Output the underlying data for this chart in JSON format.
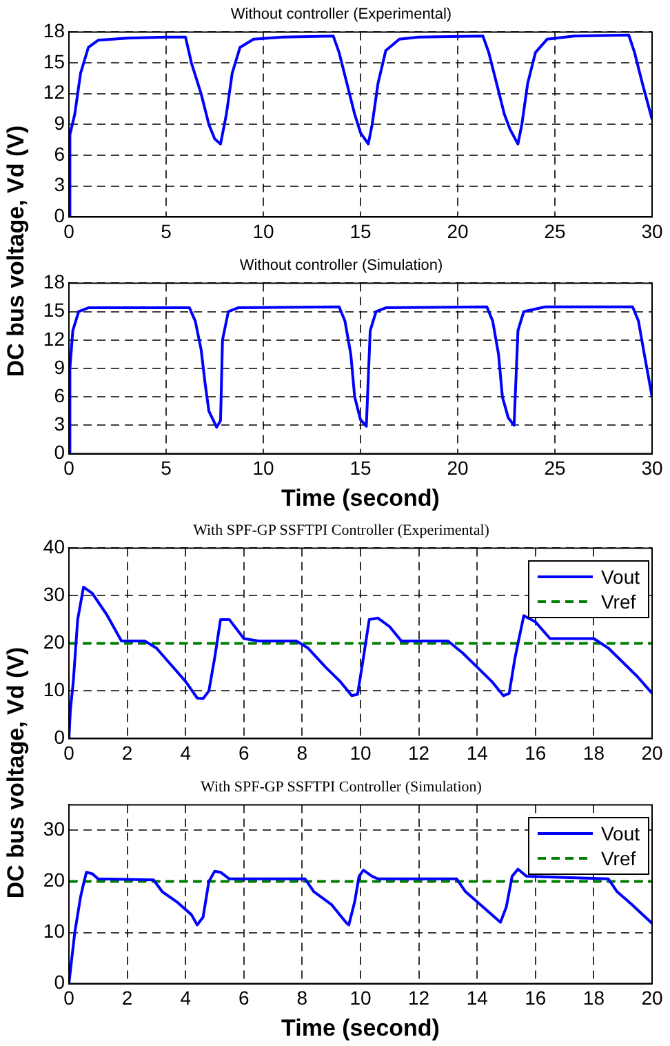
{
  "chart_data": [
    {
      "type": "line",
      "title": "Without controller (Experimental)",
      "ylabel": "DC bus voltage, Vd (V)",
      "xlim": [
        0,
        30
      ],
      "xticks": [
        0,
        5,
        10,
        15,
        20,
        25,
        30
      ],
      "ylim": [
        0,
        18
      ],
      "yticks": [
        0,
        3,
        6,
        9,
        12,
        15,
        18
      ],
      "grid": true,
      "legend": false,
      "series": [
        {
          "color": "#0000ff",
          "x": [
            0,
            0.05,
            0.3,
            0.6,
            1,
            1.5,
            3,
            5,
            6,
            6.3,
            6.8,
            7.2,
            7.5,
            7.8,
            8.1,
            8.4,
            8.8,
            9.5,
            11,
            13.6,
            13.9,
            14.3,
            14.7,
            15,
            15.4,
            15.6,
            15.9,
            16.3,
            17,
            18,
            21.3,
            21.6,
            22,
            22.4,
            22.7,
            23.1,
            23.3,
            23.6,
            24,
            24.6,
            26,
            28.8,
            29.1,
            29.5,
            30
          ],
          "values": [
            0,
            8,
            10,
            14,
            16.5,
            17.2,
            17.4,
            17.5,
            17.5,
            15,
            12,
            9,
            7.6,
            7.1,
            10,
            14,
            16.5,
            17.3,
            17.5,
            17.6,
            16,
            13,
            10,
            8.2,
            7.1,
            9,
            13,
            16.2,
            17.3,
            17.5,
            17.6,
            16,
            13,
            10,
            8.5,
            7.1,
            9,
            13,
            16,
            17.3,
            17.6,
            17.7,
            16,
            13,
            9.5
          ]
        }
      ]
    },
    {
      "type": "line",
      "title": "Without controller (Simulation)",
      "xlabel": "Time (second)",
      "xlim": [
        0,
        30
      ],
      "xticks": [
        0,
        5,
        10,
        15,
        20,
        25,
        30
      ],
      "ylim": [
        0,
        18
      ],
      "yticks": [
        0,
        3,
        6,
        9,
        12,
        15,
        18
      ],
      "grid": true,
      "legend": false,
      "series": [
        {
          "color": "#0000ff",
          "x": [
            0,
            0.05,
            0.2,
            0.5,
            1,
            6.2,
            6.5,
            6.8,
            7,
            7.2,
            7.6,
            7.8,
            7.9,
            8.2,
            8.7,
            13.9,
            14.2,
            14.5,
            14.7,
            15,
            15.3,
            15.4,
            15.5,
            15.8,
            16.3,
            21.5,
            21.8,
            22.1,
            22.3,
            22.6,
            22.9,
            23,
            23.1,
            23.4,
            24.5,
            29,
            29.3,
            29.6,
            30
          ],
          "values": [
            0,
            9,
            13,
            15,
            15.4,
            15.4,
            14,
            11,
            7.5,
            4.5,
            2.8,
            3.5,
            12,
            15,
            15.4,
            15.5,
            14,
            10.5,
            6,
            3.6,
            2.9,
            8,
            13,
            15,
            15.4,
            15.5,
            14,
            10.5,
            6,
            3.8,
            3,
            8,
            13,
            15,
            15.5,
            15.5,
            14,
            10.5,
            6
          ]
        }
      ]
    },
    {
      "type": "line",
      "title": "With SPF-GP SSFTPI Controller (Experimental)",
      "ylabel": "DC bus voltage, Vd (V)",
      "xlim": [
        0,
        20
      ],
      "xticks": [
        0,
        2,
        4,
        6,
        8,
        10,
        12,
        14,
        16,
        18,
        20
      ],
      "ylim": [
        0,
        40
      ],
      "yticks": [
        0,
        10,
        20,
        30,
        40
      ],
      "grid": true,
      "legend": "top right",
      "series": [
        {
          "name": "Vout",
          "color": "#0000ff",
          "line_style": "solid",
          "x": [
            0,
            0.05,
            0.15,
            0.3,
            0.5,
            0.8,
            1.3,
            1.8,
            2.6,
            3,
            3.5,
            4,
            4.4,
            4.6,
            4.8,
            5,
            5.2,
            5.5,
            6,
            6.5,
            7.8,
            8.2,
            8.8,
            9.3,
            9.7,
            9.9,
            10.1,
            10.3,
            10.6,
            11,
            11.4,
            13,
            13.5,
            14,
            14.5,
            14.9,
            15.1,
            15.3,
            15.6,
            16,
            16.5,
            18,
            18.5,
            19,
            19.5,
            20
          ],
          "values": [
            0,
            6,
            12,
            25,
            31.8,
            30.5,
            26,
            20.5,
            20.5,
            19,
            15.5,
            12,
            8.5,
            8.4,
            10,
            17,
            25,
            25,
            21,
            20.5,
            20.5,
            19,
            15,
            12,
            9,
            9.3,
            17,
            25,
            25.3,
            23.5,
            20.5,
            20.5,
            18,
            15,
            12,
            9,
            9.5,
            17,
            25.8,
            24.5,
            21,
            21,
            19,
            16,
            13,
            9.5
          ]
        },
        {
          "name": "Vref",
          "color": "#008000",
          "line_style": "dashed",
          "x": [
            0,
            20
          ],
          "values": [
            20,
            20
          ]
        }
      ]
    },
    {
      "type": "line",
      "title": "With SPF-GP SSFTPI Controller (Simulation)",
      "xlabel": "Time (second)",
      "xlim": [
        0,
        20
      ],
      "xticks": [
        0,
        2,
        4,
        6,
        8,
        10,
        12,
        14,
        16,
        18,
        20
      ],
      "ylim": [
        0,
        35
      ],
      "yticks": [
        0,
        10,
        20,
        30
      ],
      "grid": true,
      "legend": "top right",
      "series": [
        {
          "name": "Vout",
          "color": "#0000ff",
          "line_style": "solid",
          "x": [
            0,
            0.2,
            0.4,
            0.5,
            0.6,
            0.8,
            1,
            2.9,
            3.2,
            3.7,
            4.2,
            4.4,
            4.6,
            4.8,
            5,
            5.2,
            5.5,
            8.1,
            8.4,
            9,
            9.5,
            9.6,
            9.8,
            9.95,
            10.1,
            10.4,
            10.6,
            13.3,
            13.6,
            14,
            14.6,
            14.8,
            15,
            15.2,
            15.4,
            15.7,
            18.5,
            18.8,
            19.3,
            20
          ],
          "values": [
            0,
            10,
            17,
            19.5,
            21.8,
            21.5,
            20.5,
            20.3,
            18,
            16,
            13.5,
            11.5,
            13,
            20,
            22,
            21.8,
            20.5,
            20.5,
            18,
            15.5,
            12,
            11.5,
            16,
            21,
            22.2,
            21,
            20.5,
            20.5,
            18,
            16,
            13,
            12,
            15,
            21,
            22.4,
            21,
            20.5,
            18,
            15.5,
            11.8
          ]
        },
        {
          "name": "Vref",
          "color": "#008000",
          "line_style": "dashed",
          "x": [
            0,
            20
          ],
          "values": [
            20,
            20
          ]
        }
      ]
    }
  ]
}
